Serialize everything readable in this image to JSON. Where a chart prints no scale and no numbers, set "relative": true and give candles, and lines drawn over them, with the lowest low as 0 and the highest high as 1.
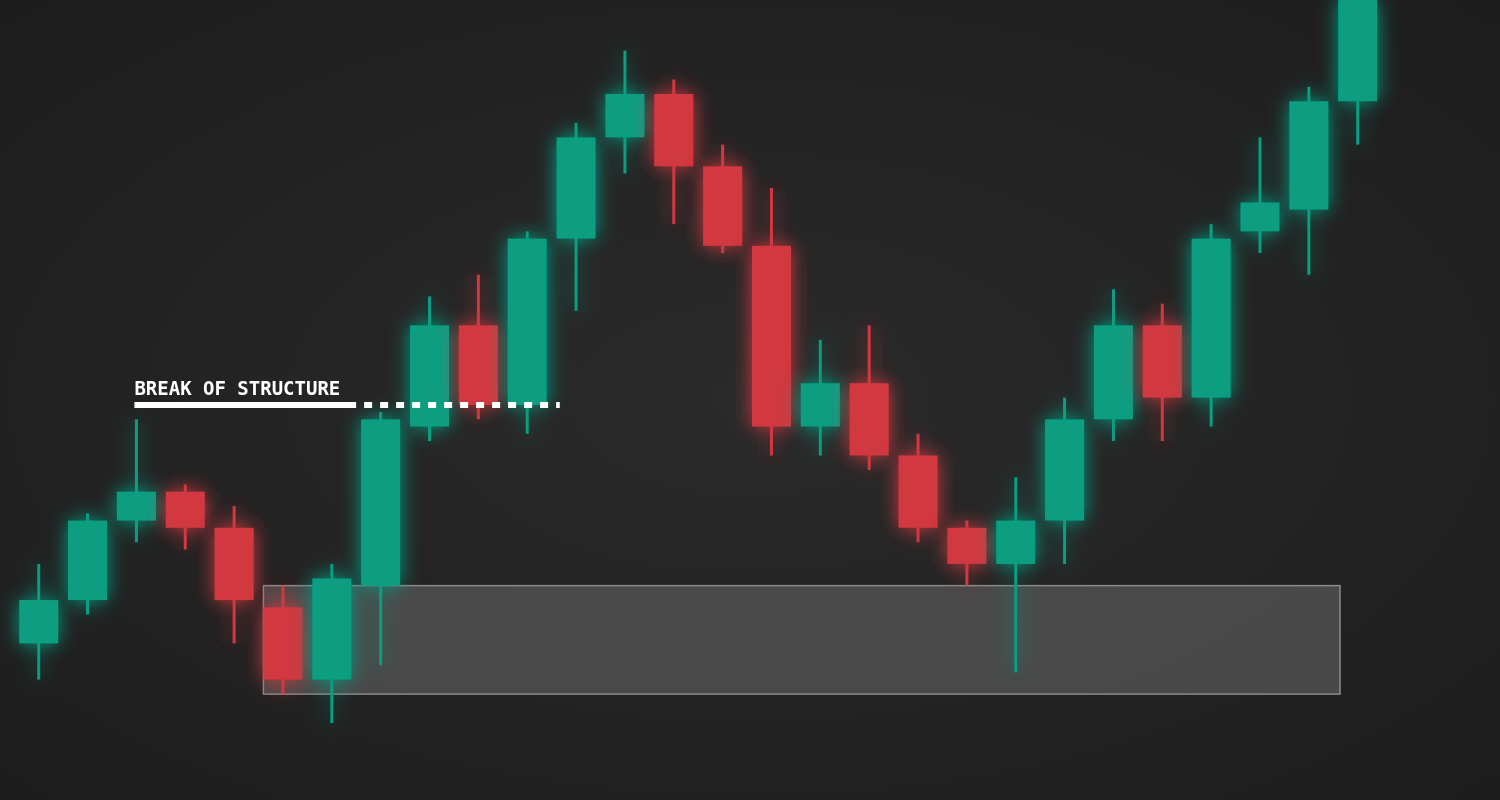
{
  "chart_data": {
    "type": "candlestick",
    "relative": true,
    "categories": [
      null,
      null,
      null,
      null,
      null,
      null,
      null,
      null,
      null,
      null,
      null,
      null,
      null,
      null,
      null,
      null,
      null,
      null,
      null,
      null,
      null,
      null,
      null,
      null,
      null,
      null,
      null,
      null
    ],
    "ohlc": [
      [
        0.11,
        0.22,
        0.06,
        0.17
      ],
      [
        0.17,
        0.29,
        0.15,
        0.28
      ],
      [
        0.28,
        0.42,
        0.25,
        0.32
      ],
      [
        0.32,
        0.33,
        0.24,
        0.27
      ],
      [
        0.27,
        0.3,
        0.11,
        0.17
      ],
      [
        0.16,
        0.19,
        0.04,
        0.06
      ],
      [
        0.06,
        0.22,
        0,
        0.2
      ],
      [
        0.19,
        0.43,
        0.08,
        0.42
      ],
      [
        0.41,
        0.59,
        0.39,
        0.55
      ],
      [
        0.55,
        0.62,
        0.42,
        0.44
      ],
      [
        0.44,
        0.68,
        0.4,
        0.67
      ],
      [
        0.67,
        0.83,
        0.57,
        0.81
      ],
      [
        0.81,
        0.93,
        0.76,
        0.87
      ],
      [
        0.87,
        0.89,
        0.69,
        0.77
      ],
      [
        0.77,
        0.8,
        0.65,
        0.66
      ],
      [
        0.66,
        0.74,
        0.37,
        0.41
      ],
      [
        0.41,
        0.53,
        0.37,
        0.47
      ],
      [
        0.47,
        0.55,
        0.35,
        0.37
      ],
      [
        0.37,
        0.4,
        0.25,
        0.27
      ],
      [
        0.27,
        0.28,
        0.19,
        0.22
      ],
      [
        0.22,
        0.34,
        0.07,
        0.28
      ],
      [
        0.28,
        0.45,
        0.22,
        0.42
      ],
      [
        0.42,
        0.6,
        0.39,
        0.55
      ],
      [
        0.55,
        0.58,
        0.39,
        0.45
      ],
      [
        0.45,
        0.69,
        0.41,
        0.67
      ],
      [
        0.68,
        0.81,
        0.65,
        0.72
      ],
      [
        0.71,
        0.88,
        0.62,
        0.86
      ],
      [
        0.86,
        1,
        0.8,
        1
      ]
    ],
    "colors": [
      "#089e82",
      "#089e82",
      "#089e82",
      "#d13741",
      "#d13741",
      "#d13741",
      "#089e82",
      "#089e82",
      "#089e82",
      "#d13741",
      "#089e82",
      "#089e82",
      "#089e82",
      "#d13741",
      "#d13741",
      "#d13741",
      "#089e82",
      "#d13741",
      "#d13741",
      "#d13741",
      "#089e82",
      "#089e82",
      "#089e82",
      "#d13741",
      "#089e82",
      "#089e82",
      "#089e82",
      "#089e82"
    ],
    "ref_lines": [
      {
        "axis": "y",
        "value": 0.44,
        "label": "BREAK OF STRUCTURE",
        "color": "#ffffff"
      }
    ],
    "bands": [
      {
        "axis": "y",
        "from": 0.04,
        "to": 0.19,
        "color": "#6a6a6a"
      }
    ]
  }
}
